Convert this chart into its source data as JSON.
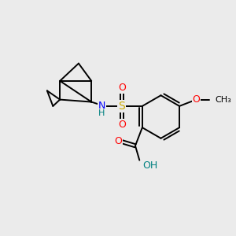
{
  "bg_color": "#ebebeb",
  "atom_colors": {
    "C": "#000000",
    "N": "#0000ff",
    "O": "#ff0000",
    "S": "#ccaa00",
    "H": "#008080"
  },
  "bond_color": "#000000",
  "bond_width": 1.4,
  "figsize": [
    3.0,
    3.0
  ],
  "dpi": 100
}
